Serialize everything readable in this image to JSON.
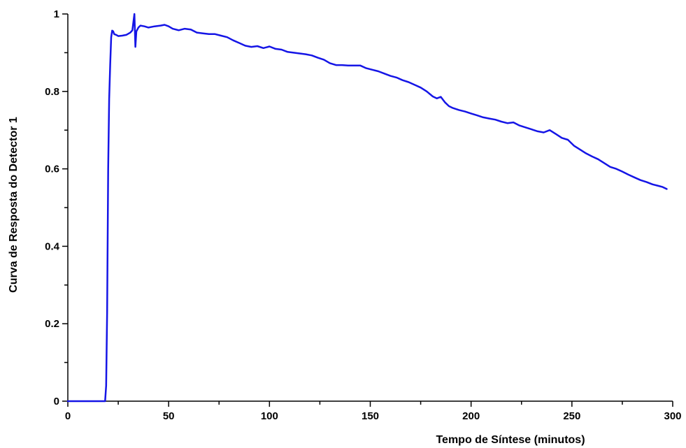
{
  "chart_data": {
    "type": "line",
    "title": "",
    "xlabel": "Tempo de Síntese (minutos)",
    "ylabel": "Curva de Resposta do Detector 1",
    "xlim": [
      0,
      300
    ],
    "ylim": [
      0,
      1
    ],
    "x_ticks": [
      0,
      50,
      100,
      150,
      200,
      250,
      300
    ],
    "x_tick_labels": [
      "0",
      "50",
      "100",
      "150",
      "200",
      "250",
      "300"
    ],
    "y_ticks": [
      0,
      0.2,
      0.4,
      0.6,
      0.8,
      1
    ],
    "y_tick_labels": [
      "0",
      "0.2",
      "0.4",
      "0.6",
      "0.8",
      "1"
    ],
    "grid": false,
    "series": [
      {
        "color": "#1515e6",
        "x": [
          0,
          18.5,
          19,
          19.5,
          20,
          20.5,
          21,
          21.5,
          22,
          22.5,
          23,
          24,
          25,
          27,
          29,
          31,
          32,
          33,
          33.5,
          34,
          35,
          36,
          38,
          40,
          43,
          46,
          48,
          50,
          52,
          55,
          58,
          61,
          64,
          67,
          70,
          73,
          76,
          79,
          82,
          85,
          88,
          91,
          94,
          97,
          100,
          103,
          106,
          109,
          112,
          115,
          118,
          121,
          124,
          127,
          130,
          133,
          136,
          139,
          142,
          145,
          148,
          151,
          154,
          157,
          160,
          163,
          166,
          169,
          172,
          175,
          178,
          181,
          183,
          185,
          187,
          189,
          191,
          194,
          197,
          200,
          203,
          206,
          209,
          212,
          215,
          218,
          221,
          224,
          227,
          230,
          233,
          236,
          239,
          242,
          245,
          248,
          251,
          254,
          257,
          260,
          263,
          266,
          269,
          272,
          275,
          278,
          281,
          284,
          287,
          290,
          293,
          295,
          297
        ],
        "y": [
          0,
          0,
          0.04,
          0.23,
          0.6,
          0.78,
          0.87,
          0.94,
          0.957,
          0.955,
          0.948,
          0.946,
          0.943,
          0.944,
          0.946,
          0.952,
          0.958,
          1.0,
          0.915,
          0.955,
          0.965,
          0.97,
          0.968,
          0.965,
          0.968,
          0.97,
          0.972,
          0.968,
          0.962,
          0.958,
          0.962,
          0.96,
          0.952,
          0.95,
          0.948,
          0.948,
          0.944,
          0.94,
          0.932,
          0.925,
          0.918,
          0.915,
          0.917,
          0.912,
          0.916,
          0.91,
          0.908,
          0.902,
          0.9,
          0.898,
          0.896,
          0.893,
          0.887,
          0.882,
          0.873,
          0.868,
          0.868,
          0.867,
          0.867,
          0.867,
          0.86,
          0.856,
          0.852,
          0.846,
          0.84,
          0.836,
          0.829,
          0.824,
          0.817,
          0.81,
          0.8,
          0.787,
          0.782,
          0.786,
          0.772,
          0.762,
          0.757,
          0.752,
          0.748,
          0.743,
          0.738,
          0.733,
          0.73,
          0.727,
          0.722,
          0.718,
          0.72,
          0.712,
          0.707,
          0.702,
          0.697,
          0.694,
          0.7,
          0.69,
          0.68,
          0.675,
          0.66,
          0.65,
          0.64,
          0.632,
          0.625,
          0.615,
          0.605,
          0.6,
          0.593,
          0.585,
          0.578,
          0.571,
          0.566,
          0.56,
          0.556,
          0.553,
          0.548
        ]
      }
    ]
  }
}
